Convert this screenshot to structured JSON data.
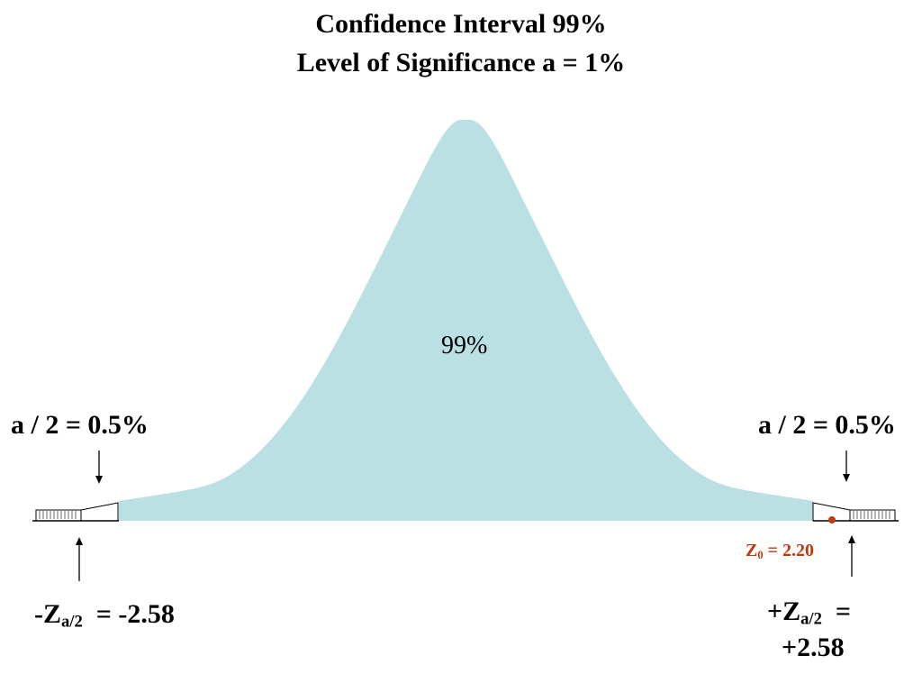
{
  "title": {
    "line1": "Confidence Interval    99%",
    "line2": "Level of Significance  a = 1%"
  },
  "center_label": "99%",
  "left_tail": {
    "alpha_label": "a / 2 = 0.5%",
    "z_prefix": "-Z",
    "z_sub": "a/2",
    "z_value": "  = -2.58"
  },
  "right_tail": {
    "alpha_label": "a / 2 = 0.5%",
    "z_prefix": "+Z",
    "z_sub": "a/2",
    "z_eq": "  =",
    "z_value": "+2.58"
  },
  "test_statistic": {
    "prefix": "Z",
    "sub": "0",
    "value": " = 2.20",
    "color": "#c0390f"
  },
  "colors": {
    "curve_fill": "#bbe0e4",
    "text": "#000000"
  }
}
